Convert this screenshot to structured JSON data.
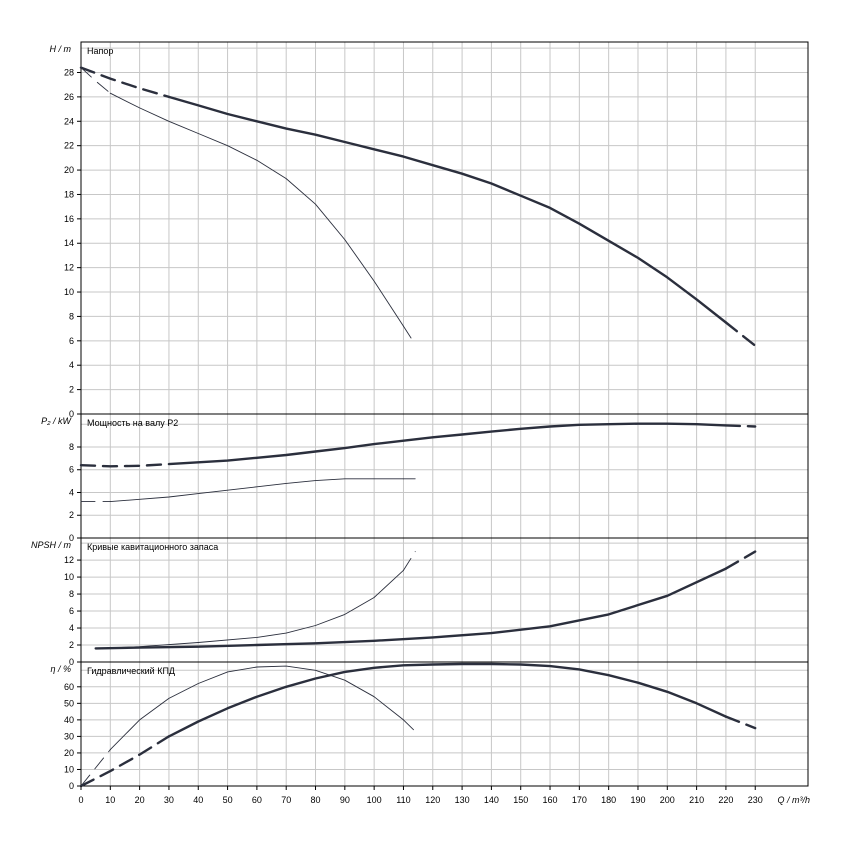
{
  "chart_data": [
    {
      "type": "line",
      "title": "Напор",
      "ylabel": "H / m",
      "ylim": [
        0,
        30.5
      ],
      "yticks": [
        0,
        2,
        4,
        6,
        8,
        10,
        12,
        14,
        16,
        18,
        20,
        22,
        24,
        26,
        28
      ],
      "grid": true,
      "series": [
        {
          "style": "thick",
          "solid_range": [
            30,
            220
          ],
          "x": [
            0,
            10,
            20,
            30,
            40,
            50,
            60,
            70,
            80,
            90,
            100,
            110,
            120,
            130,
            140,
            150,
            160,
            170,
            180,
            190,
            200,
            210,
            220,
            230
          ],
          "y": [
            28.4,
            27.5,
            26.7,
            26.0,
            25.3,
            24.6,
            24.0,
            23.4,
            22.9,
            22.3,
            21.7,
            21.1,
            20.4,
            19.7,
            18.9,
            17.9,
            16.9,
            15.6,
            14.2,
            12.8,
            11.2,
            9.4,
            7.5,
            5.6
          ]
        },
        {
          "style": "thin",
          "solid_range": [
            10,
            110
          ],
          "x": [
            0,
            5,
            10,
            20,
            30,
            40,
            50,
            60,
            70,
            80,
            90,
            100,
            110,
            114
          ],
          "y": [
            28.4,
            27.3,
            26.3,
            25.1,
            24.0,
            23.0,
            22.0,
            20.8,
            19.3,
            17.2,
            14.3,
            10.9,
            7.2,
            5.7
          ]
        }
      ]
    },
    {
      "type": "line",
      "title": "Мощность на валу P2",
      "ylabel": "P₂ / kW",
      "ylim": [
        0,
        10.9
      ],
      "yticks": [
        0,
        2,
        4,
        6,
        8
      ],
      "grid": true,
      "series": [
        {
          "style": "thick",
          "solid_range": [
            30,
            220
          ],
          "x": [
            0,
            10,
            20,
            30,
            40,
            50,
            60,
            70,
            80,
            90,
            100,
            110,
            120,
            130,
            140,
            150,
            160,
            170,
            180,
            190,
            200,
            210,
            220,
            230
          ],
          "y": [
            6.4,
            6.3,
            6.35,
            6.5,
            6.65,
            6.8,
            7.05,
            7.3,
            7.6,
            7.9,
            8.25,
            8.55,
            8.85,
            9.1,
            9.35,
            9.6,
            9.8,
            9.95,
            10.0,
            10.05,
            10.05,
            10.0,
            9.9,
            9.8
          ]
        },
        {
          "style": "thin",
          "solid_range": [
            10,
            110
          ],
          "x": [
            0,
            10,
            20,
            30,
            40,
            50,
            60,
            70,
            80,
            90,
            100,
            110,
            114
          ],
          "y": [
            3.2,
            3.2,
            3.4,
            3.6,
            3.9,
            4.2,
            4.5,
            4.8,
            5.05,
            5.2,
            5.2,
            5.2,
            5.2
          ]
        }
      ]
    },
    {
      "type": "line",
      "title": "Кривые кавитационного запаса",
      "ylabel": "NPSH / m",
      "ylim": [
        0,
        14.6
      ],
      "yticks": [
        0,
        2,
        4,
        6,
        8,
        10,
        12
      ],
      "grid": true,
      "series": [
        {
          "style": "thick",
          "solid_range": [
            5,
            220
          ],
          "x": [
            5,
            20,
            40,
            60,
            80,
            100,
            120,
            140,
            160,
            180,
            200,
            220,
            230
          ],
          "y": [
            1.6,
            1.7,
            1.8,
            2.0,
            2.2,
            2.5,
            2.9,
            3.4,
            4.2,
            5.6,
            7.8,
            11.0,
            13.0
          ]
        },
        {
          "style": "thin",
          "solid_range": [
            5,
            110
          ],
          "x": [
            5,
            20,
            40,
            60,
            70,
            80,
            90,
            100,
            110,
            114
          ],
          "y": [
            1.6,
            1.8,
            2.3,
            2.9,
            3.4,
            4.3,
            5.6,
            7.6,
            10.8,
            13.0
          ]
        }
      ]
    },
    {
      "type": "line",
      "title": "Гидравлический КПД",
      "ylabel": "η / %",
      "ylim": [
        0,
        75
      ],
      "yticks": [
        0,
        10,
        20,
        30,
        40,
        50,
        60
      ],
      "grid": true,
      "series": [
        {
          "style": "thick",
          "solid_range": [
            30,
            220
          ],
          "x": [
            0,
            10,
            20,
            30,
            40,
            50,
            60,
            70,
            80,
            90,
            100,
            110,
            120,
            130,
            140,
            150,
            160,
            170,
            180,
            190,
            200,
            210,
            220,
            230
          ],
          "y": [
            0,
            9,
            19,
            30,
            39,
            47,
            54,
            60,
            65,
            69,
            71.5,
            73,
            73.5,
            73.8,
            73.8,
            73.5,
            72.5,
            70.5,
            67,
            62.5,
            57,
            50,
            42,
            35
          ]
        },
        {
          "style": "thin",
          "solid_range": [
            10,
            110
          ],
          "x": [
            0,
            10,
            20,
            30,
            40,
            50,
            60,
            70,
            80,
            90,
            100,
            110,
            114
          ],
          "y": [
            0,
            22,
            40,
            53,
            62,
            69,
            72,
            72.5,
            70,
            64,
            54,
            40,
            33
          ]
        }
      ]
    }
  ],
  "x_axis": {
    "label": "Q / m³/h",
    "xlim": [
      0,
      248
    ],
    "ticks": [
      0,
      10,
      20,
      30,
      40,
      50,
      60,
      70,
      80,
      90,
      100,
      110,
      120,
      130,
      140,
      150,
      160,
      170,
      180,
      190,
      200,
      210,
      220,
      230
    ]
  },
  "colors": {
    "curve": "#2b2f3d",
    "grid": "#c7c7c7",
    "frame": "#000000"
  }
}
